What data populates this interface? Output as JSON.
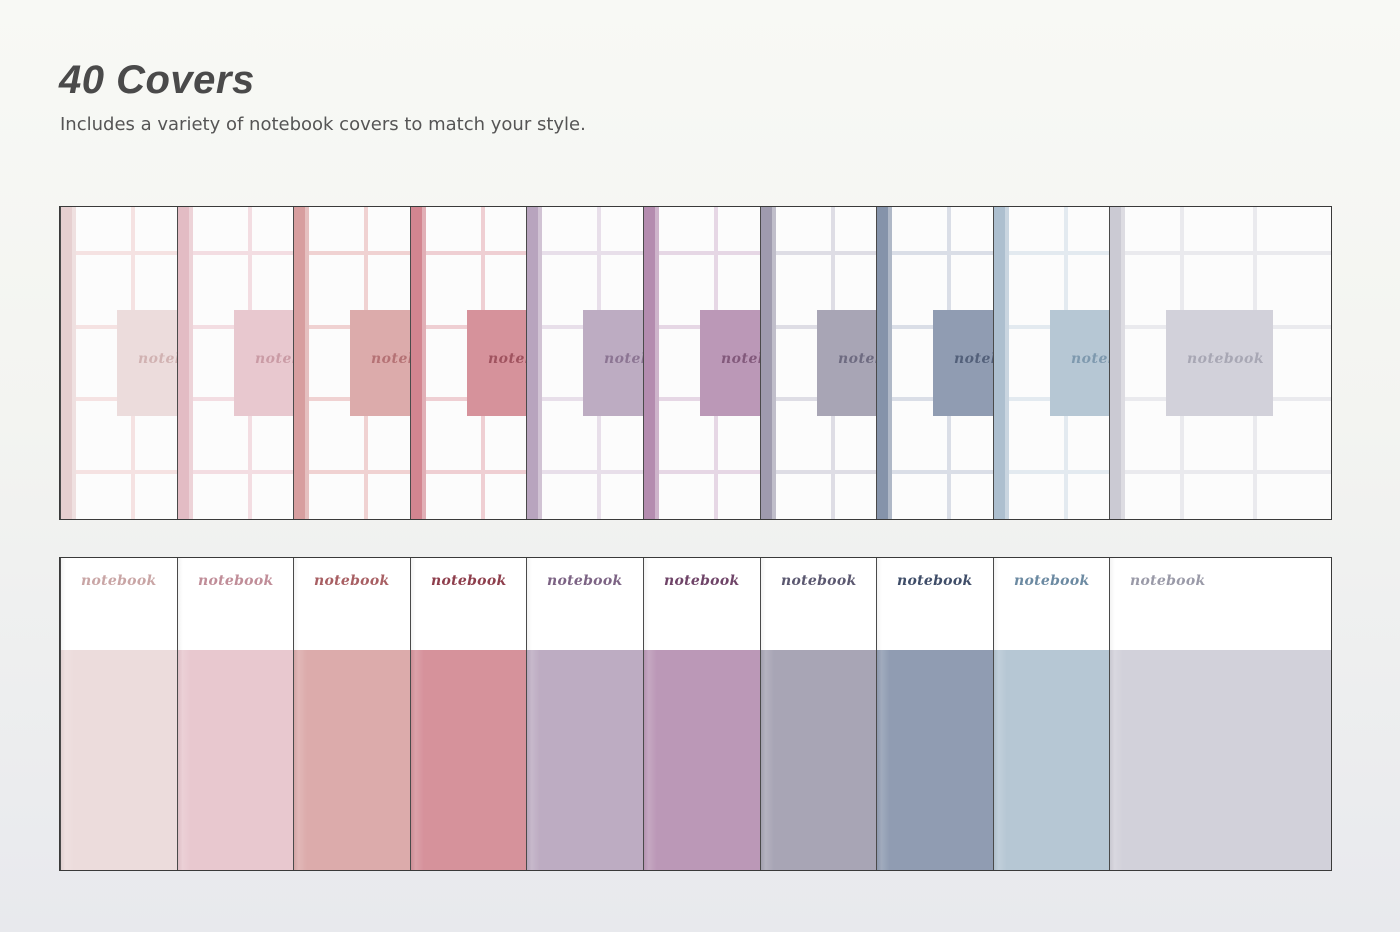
{
  "heading": {
    "title": "40 Covers",
    "subtitle": "Includes a variety of notebook covers to match your style."
  },
  "label_text": "notebook",
  "covers": [
    {
      "name": "blush",
      "color": "#ecdcdc",
      "spine": "#e6cfd0",
      "grid": "#f5e2e2",
      "title_color": "#c9a5a5"
    },
    {
      "name": "pink",
      "color": "#e8c8cf",
      "spine": "#e3bcc4",
      "grid": "#f3dde2",
      "title_color": "#c08d98"
    },
    {
      "name": "rose",
      "color": "#dcabab",
      "spine": "#d79e9f",
      "grid": "#f0d2d2",
      "title_color": "#a85f63"
    },
    {
      "name": "deep-rose",
      "color": "#d6929b",
      "spine": "#d28590",
      "grid": "#efcfd3",
      "title_color": "#8e3e4c"
    },
    {
      "name": "lilac",
      "color": "#bdacc2",
      "spine": "#b8a4be",
      "grid": "#e8dfea",
      "title_color": "#7c6384"
    },
    {
      "name": "mauve",
      "color": "#bb98b7",
      "spine": "#b48caf",
      "grid": "#e6d7e5",
      "title_color": "#6f4468"
    },
    {
      "name": "grey-violet",
      "color": "#a8a5b5",
      "spine": "#9f9bae",
      "grid": "#dedde5",
      "title_color": "#5b5870"
    },
    {
      "name": "slate-blue",
      "color": "#909cb2",
      "spine": "#8593aa",
      "grid": "#dadee7",
      "title_color": "#3f4d68"
    },
    {
      "name": "powder-blue",
      "color": "#b6c7d4",
      "spine": "#adbfcf",
      "grid": "#e3eaf0",
      "title_color": "#6c8aa2"
    },
    {
      "name": "cool-grey",
      "color": "#d2d1da",
      "spine": "#cbcad3",
      "grid": "#eaeaee",
      "title_color": "#9a9aa8"
    }
  ]
}
